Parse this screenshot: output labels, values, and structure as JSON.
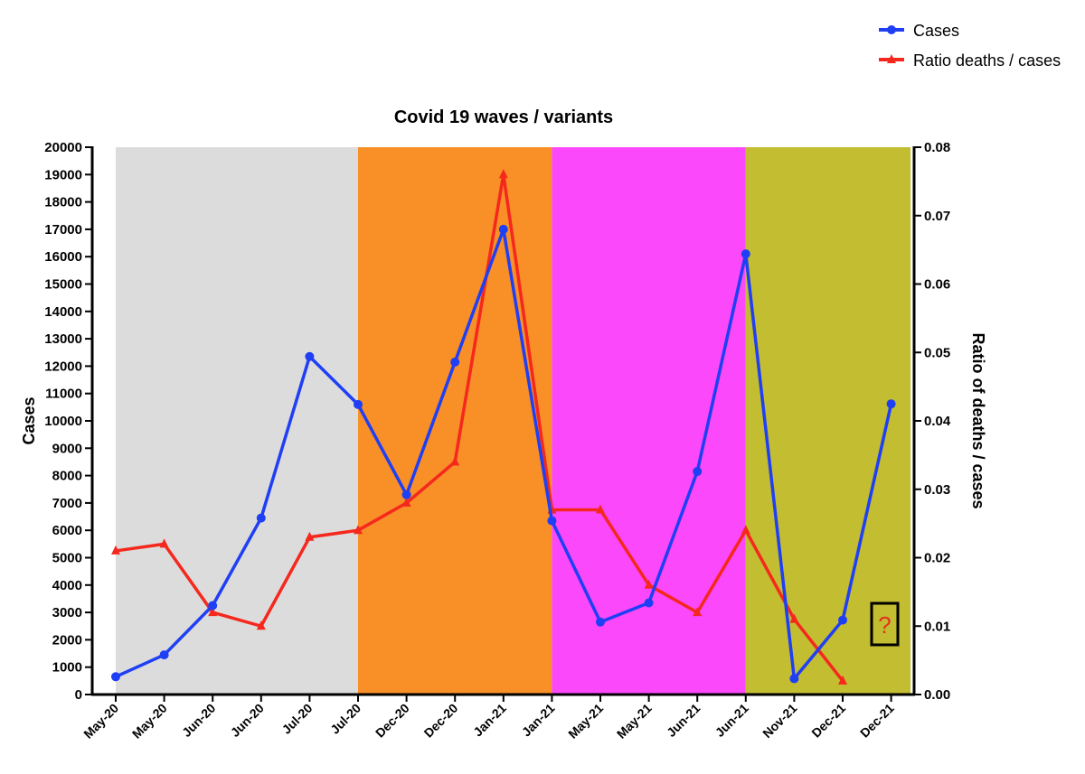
{
  "chart_data": {
    "type": "line",
    "title": "Covid 19 waves /  variants",
    "ylabel": "Cases",
    "y2label": "Ratio of deaths  /  cases",
    "categories": [
      "May-20",
      "May-20",
      "Jun-20",
      "Jun-20",
      "Jul-20",
      "Jul-20",
      "Dec-20",
      "Dec-20",
      "Jan-21",
      "Jan-21",
      "May-21",
      "May-21",
      "Jun-21",
      "Jun-21",
      "Nov-21",
      "Dec-21",
      "Dec-21"
    ],
    "ylim": [
      0,
      20000
    ],
    "y2lim": [
      0,
      0.08
    ],
    "yticks": [
      0,
      1000,
      2000,
      3000,
      4000,
      5000,
      6000,
      7000,
      8000,
      9000,
      10000,
      11000,
      12000,
      13000,
      14000,
      15000,
      16000,
      17000,
      18000,
      19000,
      20000
    ],
    "y2ticks": [
      "0.00",
      "0.01",
      "0.02",
      "0.03",
      "0.04",
      "0.05",
      "0.06",
      "0.07",
      "0.08"
    ],
    "series": [
      {
        "name": "Cases",
        "axis": "left",
        "color": "#1f3ff5",
        "marker": "circle",
        "values": [
          650,
          1450,
          3250,
          6450,
          12350,
          10600,
          7300,
          12150,
          17000,
          6350,
          2650,
          3350,
          8150,
          16100,
          580,
          2720,
          10620
        ]
      },
      {
        "name": "Ratio deaths / cases",
        "axis": "right",
        "color": "#f5281e",
        "marker": "triangle",
        "values": [
          0.021,
          0.022,
          0.012,
          0.01,
          0.023,
          0.024,
          0.028,
          0.034,
          0.076,
          0.027,
          0.027,
          0.016,
          0.012,
          0.024,
          0.011,
          0.002,
          null
        ]
      }
    ],
    "bands": [
      {
        "from": 0,
        "to": 5,
        "color": "#dcdcdc"
      },
      {
        "from": 5,
        "to": 9,
        "color": "#f98f27"
      },
      {
        "from": 9,
        "to": 13,
        "color": "#fb48fb"
      },
      {
        "from": 13,
        "to": 16.4,
        "color": "#c2bd31"
      }
    ],
    "annotation": {
      "text": "?",
      "color": "#e53020"
    },
    "legend": {
      "position": "top-right"
    },
    "grid": false
  }
}
